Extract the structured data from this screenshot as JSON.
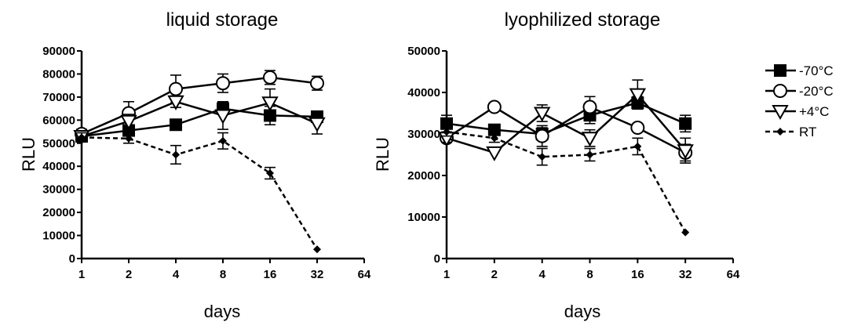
{
  "chart_data": [
    {
      "type": "line",
      "title": "liquid storage",
      "xlabel": "days",
      "ylabel": "RLU",
      "xscale": "log2",
      "x": [
        1,
        2,
        4,
        8,
        16,
        32
      ],
      "xticks": [
        "1",
        "2",
        "4",
        "8",
        "16",
        "32",
        "64"
      ],
      "xlim": [
        1,
        64
      ],
      "ylim": [
        0,
        90000
      ],
      "yticks": [
        "0",
        "10000",
        "20000",
        "30000",
        "40000",
        "50000",
        "60000",
        "70000",
        "80000",
        "90000"
      ],
      "series": [
        {
          "name": "-70°C",
          "marker": "filled-square",
          "line": "solid",
          "values": [
            53000,
            55500,
            58000,
            65000,
            62000,
            61500
          ],
          "errors": [
            2000,
            2000,
            1500,
            2500,
            4000,
            2000
          ]
        },
        {
          "name": "-20°C",
          "marker": "open-circle",
          "line": "solid",
          "values": [
            54000,
            63000,
            73500,
            76000,
            78500,
            76000
          ],
          "errors": [
            2000,
            5000,
            6000,
            4000,
            3000,
            3000
          ]
        },
        {
          "name": "+4°C",
          "marker": "open-triangle-down",
          "line": "solid",
          "values": [
            53000,
            59500,
            68000,
            62000,
            67500,
            58500
          ],
          "errors": [
            2000,
            3000,
            2500,
            6000,
            6000,
            4500
          ]
        },
        {
          "name": "RT",
          "marker": "filled-diamond",
          "line": "dashed",
          "values": [
            52500,
            52000,
            45000,
            51000,
            37000,
            4000
          ],
          "errors": [
            2000,
            2000,
            4000,
            3500,
            2500,
            0
          ]
        }
      ]
    },
    {
      "type": "line",
      "title": "lyophilized storage",
      "xlabel": "days",
      "ylabel": "RLU",
      "xscale": "log2",
      "x": [
        1,
        2,
        4,
        8,
        16,
        32
      ],
      "xticks": [
        "1",
        "2",
        "4",
        "8",
        "16",
        "32",
        "64"
      ],
      "xlim": [
        1,
        64
      ],
      "ylim": [
        0,
        50000
      ],
      "yticks": [
        "0",
        "10000",
        "20000",
        "30000",
        "40000",
        "50000"
      ],
      "legend_position": "right",
      "series": [
        {
          "name": "-70°C",
          "marker": "filled-square",
          "line": "solid",
          "values": [
            32500,
            31000,
            30000,
            34500,
            37500,
            32500
          ],
          "errors": [
            2000,
            1000,
            1500,
            2000,
            1500,
            2000
          ]
        },
        {
          "name": "-20°C",
          "marker": "open-circle",
          "line": "solid",
          "values": [
            29000,
            36500,
            29500,
            36500,
            31500,
            25500
          ],
          "errors": [
            1000,
            0,
            2500,
            2500,
            0,
            2000
          ]
        },
        {
          "name": "+4°C",
          "marker": "open-triangle-down",
          "line": "solid",
          "values": [
            29000,
            25500,
            35000,
            29000,
            39500,
            26000
          ],
          "errors": [
            1000,
            0,
            2000,
            2000,
            3500,
            3000
          ]
        },
        {
          "name": "RT",
          "marker": "filled-diamond",
          "line": "dashed",
          "values": [
            30500,
            29000,
            24500,
            25000,
            27000,
            6300
          ],
          "errors": [
            1000,
            1000,
            2000,
            1500,
            2000,
            0
          ]
        }
      ]
    }
  ]
}
